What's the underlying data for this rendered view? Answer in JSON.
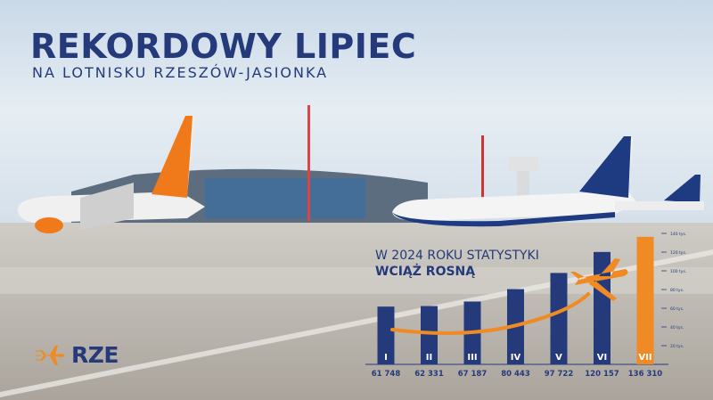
{
  "header": {
    "title": "REKORDOWY LIPIEC",
    "subtitle": "NA LOTNISKU RZESZÓW-JASIONKA"
  },
  "chart_heading": {
    "line1": "W 2024 ROKU STATYSTYKI",
    "line2": "WCIĄŻ ROSNĄ"
  },
  "logo": {
    "text": "RZE"
  },
  "colors": {
    "navy": "#253a7a",
    "orange": "#f08a24"
  },
  "chart_data": {
    "type": "bar",
    "categories": [
      "I",
      "II",
      "III",
      "IV",
      "V",
      "VI",
      "VII"
    ],
    "values": [
      61748,
      62331,
      67187,
      80443,
      97722,
      120157,
      136310
    ],
    "value_labels": [
      "61 748",
      "62 331",
      "67 187",
      "80 443",
      "97 722",
      "120 157",
      "136 310"
    ],
    "highlight_index": 6,
    "ylim": [
      0,
      140000
    ],
    "yticks": [
      20000,
      40000,
      60000,
      80000,
      100000,
      120000,
      140000
    ],
    "ytick_labels": [
      "20 tys.",
      "40 tys.",
      "60 tys.",
      "80 tys.",
      "100 tys.",
      "120 tys.",
      "140 tys."
    ],
    "axis_position": "right",
    "grid": false
  }
}
